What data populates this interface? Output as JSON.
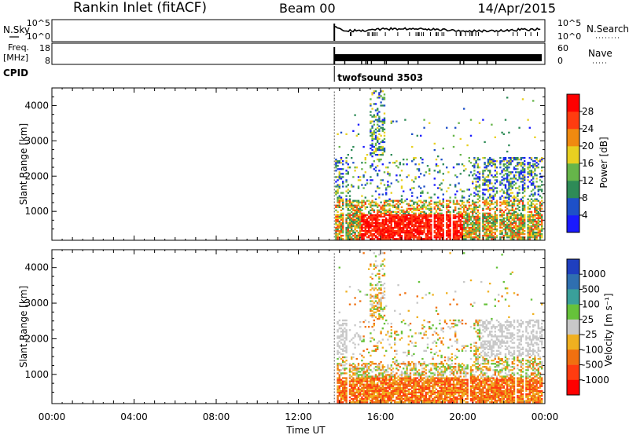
{
  "header": {
    "station": "Rankin Inlet (fitACF)",
    "beam": "Beam 00",
    "date": "14/Apr/2015"
  },
  "noise_panel": {
    "left_label": "N.Sky",
    "right_label": "N.Search",
    "left_ticks": [
      "10^5",
      "10^0"
    ],
    "right_ticks": [
      "10^5",
      "10^0"
    ]
  },
  "freq_panel": {
    "left_label_line1": "Freq.",
    "left_label_line2": "[MHz]",
    "right_label": "Nave",
    "left_ticks": [
      "18",
      "8"
    ],
    "right_ticks": [
      "60",
      "0"
    ]
  },
  "cpid": {
    "label": "CPID",
    "program": "twofsound 3503",
    "start_hour": 13.75
  },
  "chart_data": [
    {
      "type": "heatmap",
      "name": "power",
      "ylabel": "Slant Range [km]",
      "ylim": [
        180,
        4500
      ],
      "yticks": [
        "1000",
        "2000",
        "3000",
        "4000"
      ],
      "ytick_values": [
        1000,
        2000,
        3000,
        4000
      ],
      "colorbar_label": "Power [dB]",
      "colorbar_ticks": [
        "4",
        "8",
        "12",
        "16",
        "20",
        "24",
        "28"
      ],
      "colorbar_colors": [
        "#1a1aff",
        "#1e50c8",
        "#2e8b57",
        "#66b54a",
        "#e8d020",
        "#f08a10",
        "#ff3c10",
        "#ff0000"
      ],
      "data_start_hour": 13.75
    },
    {
      "type": "heatmap",
      "name": "velocity",
      "ylabel": "Slant Range [km]",
      "ylim": [
        180,
        4500
      ],
      "yticks": [
        "1000",
        "2000",
        "3000",
        "4000"
      ],
      "ytick_values": [
        1000,
        2000,
        3000,
        4000
      ],
      "colorbar_label": "Velocity [m s⁻¹]",
      "colorbar_ticks": [
        "1000",
        "500",
        "100",
        "25",
        "-25",
        "-100",
        "-500",
        "-1000"
      ],
      "colorbar_colors": [
        "#1f3fbf",
        "#2f6fb0",
        "#3aa09a",
        "#66c23a",
        "#c8c8c8",
        "#f0b020",
        "#f07010",
        "#ff3c10",
        "#ff0000"
      ],
      "data_start_hour": 13.75
    }
  ],
  "x_axis": {
    "label": "Time UT",
    "ticks": [
      "00:00",
      "04:00",
      "08:00",
      "12:00",
      "16:00",
      "20:00",
      "00:00"
    ],
    "tick_hours": [
      0,
      4,
      8,
      12,
      16,
      20,
      24
    ]
  }
}
